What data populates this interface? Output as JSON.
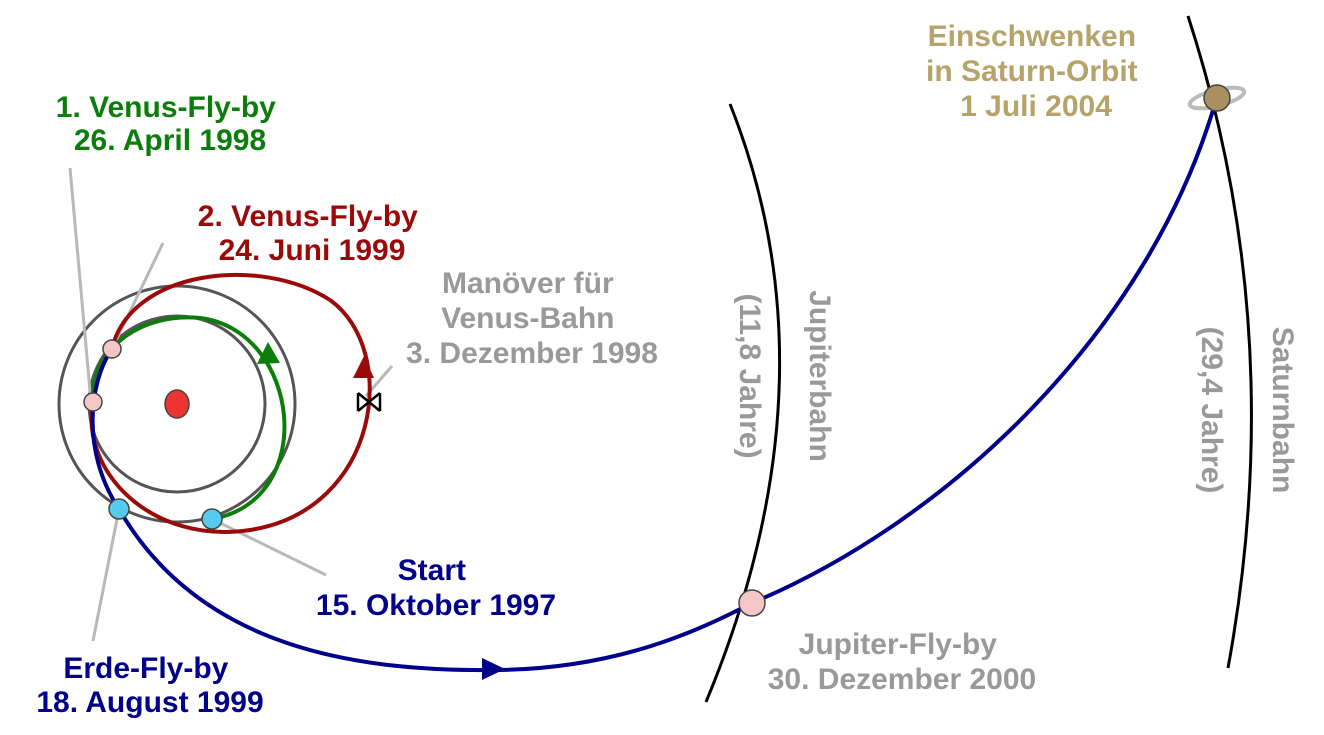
{
  "labels": {
    "venus1": {
      "line1": "1. Venus-Fly-by",
      "line2": "26. April 1998"
    },
    "venus2": {
      "line1": "2. Venus-Fly-by",
      "line2": "24. Juni 1999"
    },
    "maneuver": {
      "line1": "Manöver für",
      "line2": "Venus-Bahn",
      "line3": "3. Dezember 1998"
    },
    "start": {
      "line1": "Start",
      "line2": "15. Oktober 1997"
    },
    "earth": {
      "line1": "Erde-Fly-by",
      "line2": "18. August 1999"
    },
    "jupiter_flyby": {
      "line1": "Jupiter-Fly-by",
      "line2": "30. Dezember 2000"
    },
    "saturn_insertion": {
      "line1": "Einschwenken",
      "line2": "in Saturn-Orbit",
      "line3": "1 Juli 2004"
    },
    "jupiter_orbit": {
      "name": "Jupiterbahn",
      "period": "(11,8 Jahre)"
    },
    "saturn_orbit": {
      "name": "Saturnbahn",
      "period": "(29,4 Jahre)"
    }
  },
  "colors": {
    "green": "#0a7d0a",
    "red": "#9b0a0a",
    "blue": "#00008b",
    "gray": "#999999",
    "gold": "#b5a36a",
    "sun": "#ee3333",
    "planet_pink": "#f4c6c6",
    "earth_cyan": "#55ccee"
  }
}
